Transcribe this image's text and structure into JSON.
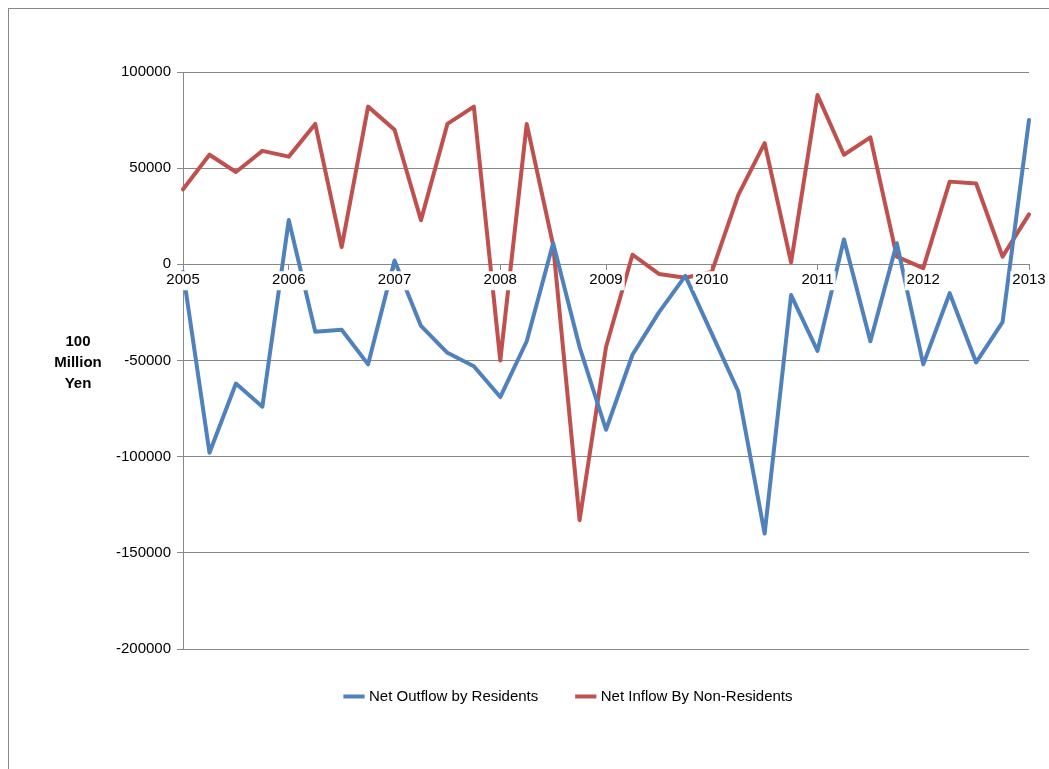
{
  "chart_data": {
    "type": "line",
    "ylabel": "100 Million Yen",
    "categories": [
      "2005",
      null,
      null,
      null,
      "2006",
      null,
      null,
      null,
      "2007",
      null,
      null,
      null,
      "2008",
      null,
      null,
      null,
      "2009",
      null,
      null,
      null,
      "2010",
      null,
      null,
      null,
      "2011",
      null,
      null,
      null,
      "2012",
      null,
      null,
      null,
      "2013"
    ],
    "series": [
      {
        "name": "Net Outflow by Residents",
        "color": "#4f81bd",
        "values": [
          -4000,
          -98000,
          -62000,
          -74000,
          23000,
          -35000,
          -34000,
          -52000,
          2000,
          -32000,
          -46000,
          -53000,
          -69000,
          -40000,
          11000,
          -43000,
          -86000,
          -47000,
          -25000,
          -6000,
          -36000,
          -66000,
          -140000,
          -16000,
          -45000,
          13000,
          -40000,
          11000,
          -52000,
          -15000,
          -51000,
          -30000,
          75000
        ]
      },
      {
        "name": "Net Inflow By Non-Residents",
        "color": "#c0504d",
        "values": [
          39000,
          57000,
          48000,
          59000,
          56000,
          73000,
          9000,
          82000,
          70000,
          23000,
          73000,
          82000,
          -50000,
          73000,
          10000,
          -133000,
          -43000,
          5000,
          -5000,
          -7000,
          -4000,
          36000,
          63000,
          1000,
          88000,
          57000,
          66000,
          4000,
          -2000,
          43000,
          42000,
          4000,
          26000
        ]
      }
    ],
    "ylim": [
      -200000,
      100000
    ],
    "yticks": [
      -200000,
      -150000,
      -100000,
      -50000,
      0,
      50000,
      100000
    ],
    "grid": "y",
    "legend": "bottom",
    "marker": "none",
    "line_style": "solid"
  }
}
